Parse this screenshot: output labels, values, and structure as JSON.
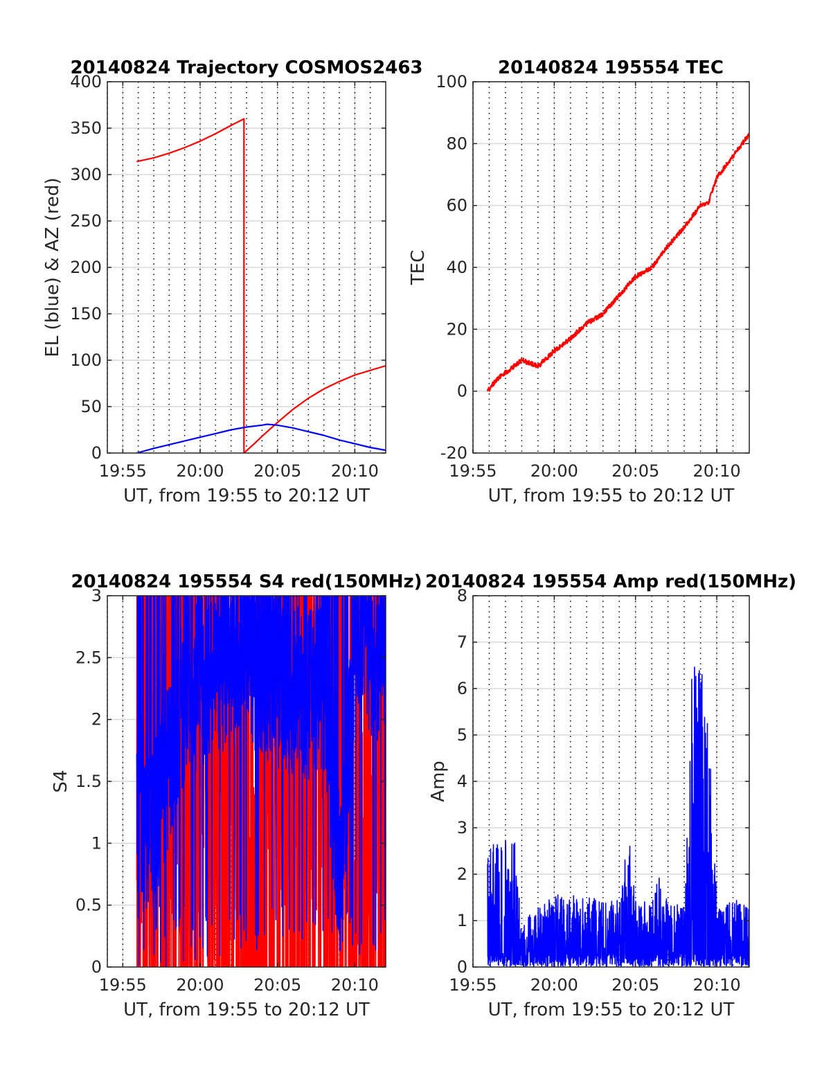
{
  "figure": {
    "colors": {
      "red": "#ff0000",
      "blue": "#0000ff",
      "grid": "#d9d9d9",
      "axis": "#262626",
      "minor_grid": "#000000"
    }
  },
  "chart_data": [
    {
      "id": "trajectory",
      "type": "line",
      "title": "20140824 Trajectory COSMOS2463",
      "xlabel": "UT, from 19:55 to 20:12 UT",
      "ylabel": "EL (blue) & AZ (red)",
      "xlim": [
        "19:54:00",
        "20:12:00"
      ],
      "ylim": [
        0,
        400
      ],
      "xticks": [
        "19:55",
        "20:00",
        "20:05",
        "20:10"
      ],
      "yticks": [
        "0",
        "50",
        "100",
        "150",
        "200",
        "250",
        "300",
        "350",
        "400"
      ],
      "grid": true,
      "series": [
        {
          "color": "#ff0000",
          "x": [
            "19:55:54",
            "19:57:00",
            "19:58:00",
            "19:59:00",
            "20:00:00",
            "20:01:00",
            "20:02:00",
            "20:02:50",
            "20:02:50",
            "20:03:30",
            "20:04:00",
            "20:05:00",
            "20:06:00",
            "20:07:00",
            "20:08:00",
            "20:09:00",
            "20:10:00",
            "20:11:00",
            "20:12:00"
          ],
          "y": [
            314,
            318,
            323,
            329,
            336,
            344,
            353,
            360,
            0,
            10,
            18,
            33,
            47,
            59,
            69,
            77,
            84,
            89,
            94
          ]
        },
        {
          "color": "#0000ff",
          "x": [
            "19:55:54",
            "19:57:00",
            "19:58:00",
            "19:59:00",
            "20:00:00",
            "20:01:00",
            "20:02:00",
            "20:03:00",
            "20:04:00",
            "20:04:20",
            "20:05:00",
            "20:06:00",
            "20:07:00",
            "20:08:00",
            "20:09:00",
            "20:10:00",
            "20:11:00",
            "20:12:00"
          ],
          "y": [
            0,
            5,
            9,
            13,
            17,
            21,
            25,
            28,
            30,
            31,
            30,
            27,
            23,
            19,
            14,
            10,
            6,
            3
          ]
        }
      ]
    },
    {
      "id": "tec",
      "type": "line",
      "title": "20140824 195554 TEC",
      "xlabel": "UT, from 19:55 to 20:12 UT",
      "ylabel": "TEC",
      "xlim": [
        "19:55:00",
        "20:12:00"
      ],
      "ylim": [
        -20,
        100
      ],
      "xticks": [
        "19:55",
        "20:00",
        "20:05",
        "20:10"
      ],
      "yticks": [
        "-20",
        "0",
        "20",
        "40",
        "60",
        "80",
        "100"
      ],
      "grid": true,
      "series": [
        {
          "color": "#ff0000",
          "x": [
            "19:55:54",
            "19:56:30",
            "19:57:00",
            "19:58:00",
            "19:59:00",
            "20:00:00",
            "20:01:00",
            "20:02:00",
            "20:03:00",
            "20:04:00",
            "20:05:00",
            "20:06:00",
            "20:07:00",
            "20:08:00",
            "20:09:00",
            "20:09:30",
            "20:10:00",
            "20:11:00",
            "20:12:00"
          ],
          "y": [
            0,
            4,
            6,
            10,
            8,
            13,
            17,
            22,
            25,
            31,
            37,
            40,
            47,
            53,
            60,
            61,
            69,
            76,
            83
          ]
        }
      ]
    },
    {
      "id": "s4",
      "type": "line",
      "title": "20140824 195554 S4 red(150MHz)",
      "xlabel": "UT, from 19:55 to 20:12 UT",
      "ylabel": "S4",
      "xlim": [
        "19:54:00",
        "20:12:00"
      ],
      "ylim": [
        0,
        3
      ],
      "xticks": [
        "19:55",
        "20:00",
        "20:05",
        "20:10"
      ],
      "yticks": [
        "0",
        "0.5",
        "1",
        "1.5",
        "2",
        "2.5",
        "3"
      ],
      "grid": true,
      "series": [
        {
          "color": "#ff0000",
          "style": "dense-noise",
          "x": [
            "19:55:54",
            "19:57:00",
            "19:59:00",
            "20:01:00",
            "20:03:00",
            "20:05:00",
            "20:07:00",
            "20:08:30",
            "20:10:00",
            "20:12:00"
          ],
          "y": [
            0,
            3,
            3,
            3,
            0,
            2,
            3,
            3,
            0,
            3
          ]
        },
        {
          "color": "#0000ff",
          "style": "dense-noise",
          "x": [
            "19:55:54",
            "19:57:00",
            "19:59:00",
            "20:01:00",
            "20:03:00",
            "20:05:00",
            "20:07:00",
            "20:08:00",
            "20:09:00",
            "20:10:00",
            "20:12:00"
          ],
          "y": [
            1.3,
            1.1,
            2.2,
            2.4,
            2.5,
            2.3,
            2.2,
            2.3,
            0.7,
            2.6,
            2.5
          ]
        }
      ]
    },
    {
      "id": "amp",
      "type": "line",
      "title": "20140824 195554 Amp red(150MHz)",
      "xlabel": "UT, from 19:55 to 20:12 UT",
      "ylabel": "Amp",
      "xlim": [
        "19:55:00",
        "20:12:00"
      ],
      "ylim": [
        0,
        8
      ],
      "xticks": [
        "19:55",
        "20:00",
        "20:05",
        "20:10"
      ],
      "yticks": [
        "0",
        "1",
        "2",
        "3",
        "4",
        "5",
        "6",
        "7",
        "8"
      ],
      "grid": true,
      "series": [
        {
          "color": "#0000ff",
          "style": "dense-noise",
          "x": [
            "19:55:54",
            "19:56:30",
            "19:57:00",
            "19:57:30",
            "19:58:00",
            "20:00:00",
            "20:02:00",
            "20:04:00",
            "20:04:30",
            "20:05:00",
            "20:06:00",
            "20:06:30",
            "20:07:00",
            "20:08:00",
            "20:08:30",
            "20:09:00",
            "20:09:30",
            "20:10:00",
            "20:11:00",
            "20:12:00"
          ],
          "y": [
            2.6,
            2.7,
            2.8,
            3.0,
            1.0,
            1.6,
            1.5,
            1.5,
            3.2,
            1.5,
            1.4,
            2.3,
            1.3,
            1.4,
            6.8,
            6.5,
            5.5,
            1.4,
            1.5,
            1.3
          ]
        }
      ]
    }
  ]
}
